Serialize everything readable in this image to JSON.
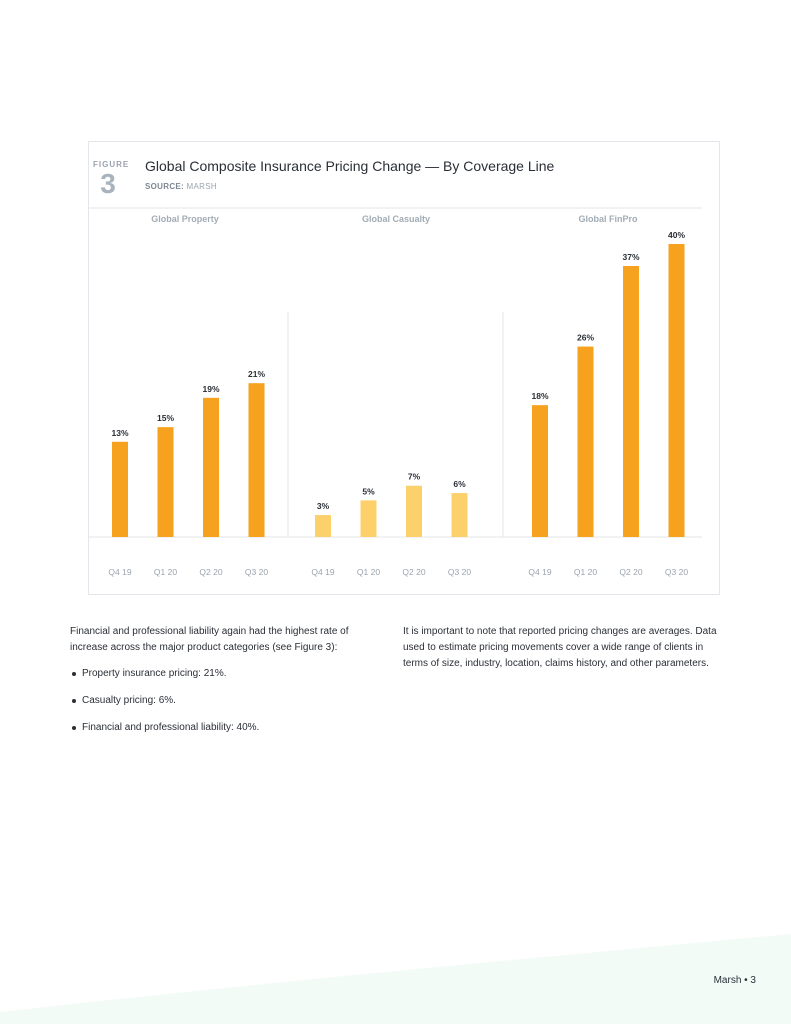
{
  "figure": {
    "label": "FIGURE",
    "number": "3",
    "title": "Global Composite Insurance Pricing Change — By Coverage Line",
    "source_label": "SOURCE:",
    "source_value": "MARSH"
  },
  "chart_data": {
    "type": "bar",
    "title": "Global Composite Insurance Pricing Change — By Coverage Line",
    "ylabel": "",
    "ylim": [
      0,
      40
    ],
    "grid": false,
    "panels": [
      {
        "name": "Global Property",
        "color": "#f7a21e",
        "categories": [
          "Q4 19",
          "Q1 20",
          "Q2 20",
          "Q3 20"
        ],
        "values": [
          13,
          15,
          19,
          21
        ],
        "labels": [
          "13%",
          "15%",
          "19%",
          "21%"
        ]
      },
      {
        "name": "Global Casualty",
        "color": "#fcd06b",
        "categories": [
          "Q4 19",
          "Q1 20",
          "Q2 20",
          "Q3 20"
        ],
        "values": [
          3,
          5,
          7,
          6
        ],
        "labels": [
          "3%",
          "5%",
          "7%",
          "6%"
        ]
      },
      {
        "name": "Global FinPro",
        "color": "#f7a21e",
        "categories": [
          "Q4 19",
          "Q1 20",
          "Q2 20",
          "Q3 20"
        ],
        "values": [
          18,
          26,
          37,
          40
        ],
        "labels": [
          "18%",
          "26%",
          "37%",
          "40%"
        ]
      }
    ]
  },
  "text": {
    "left_para": "Financial and professional liability again had the highest rate of increase across the major product categories (see Figure 3):",
    "bullets": [
      "Property insurance pricing: 21%.",
      "Casualty pricing: 6%.",
      "Financial and professional liability: 40%."
    ],
    "right_para": "It is important to note that reported pricing changes are averages. Data used to estimate pricing movements cover a wide range of clients in terms of size, industry, location, claims history, and other parameters."
  },
  "footer": {
    "text": "Marsh • 3"
  }
}
